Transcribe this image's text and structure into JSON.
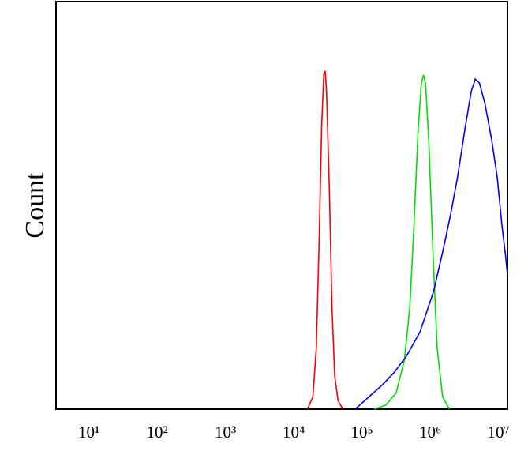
{
  "chart_data": {
    "type": "line",
    "ylabel": "Count",
    "xscale": "log",
    "xlim": [
      3.3,
      13500000
    ],
    "ylim": [
      0,
      100
    ],
    "xticks": [
      {
        "value": 10,
        "label": "10¹"
      },
      {
        "value": 100,
        "label": "10²"
      },
      {
        "value": 1000,
        "label": "10³"
      },
      {
        "value": 10000,
        "label": "10⁴"
      },
      {
        "value": 100000,
        "label": "10⁵"
      },
      {
        "value": 1000000,
        "label": "10⁶"
      },
      {
        "value": 10000000,
        "label": "10⁷"
      }
    ],
    "series": [
      {
        "color": "#ff0000",
        "x": [
          15850,
          19050,
          21380,
          23440,
          25700,
          27540,
          28840,
          30200,
          33110,
          36310,
          39810,
          44670,
          52480
        ],
        "values": [
          0,
          3,
          15,
          40,
          70,
          82,
          83,
          78,
          55,
          25,
          8,
          2,
          0
        ]
      },
      {
        "color": "#00e000",
        "x": [
          151400,
          223900,
          316200,
          416900,
          501200,
          575400,
          660700,
          741300,
          794300,
          851100,
          955000,
          1096000,
          1259000,
          1514000,
          1905000
        ],
        "values": [
          0,
          1,
          4,
          12,
          25,
          45,
          68,
          80,
          82,
          80,
          65,
          38,
          15,
          3,
          0
        ]
      },
      {
        "color": "#0000ff",
        "x": [
          79430,
          125900,
          199500,
          295100,
          446700,
          707900,
          1122000,
          1585000,
          1995000,
          2512000,
          3236000,
          3981000,
          4571000,
          5248000,
          6310000,
          7943000,
          9550000,
          11220000,
          12590000,
          13490000
        ],
        "values": [
          0,
          3,
          6,
          9,
          13,
          19,
          29,
          40,
          48,
          57,
          69,
          78,
          81,
          80,
          75,
          66,
          57,
          45,
          38,
          33
        ]
      }
    ]
  }
}
